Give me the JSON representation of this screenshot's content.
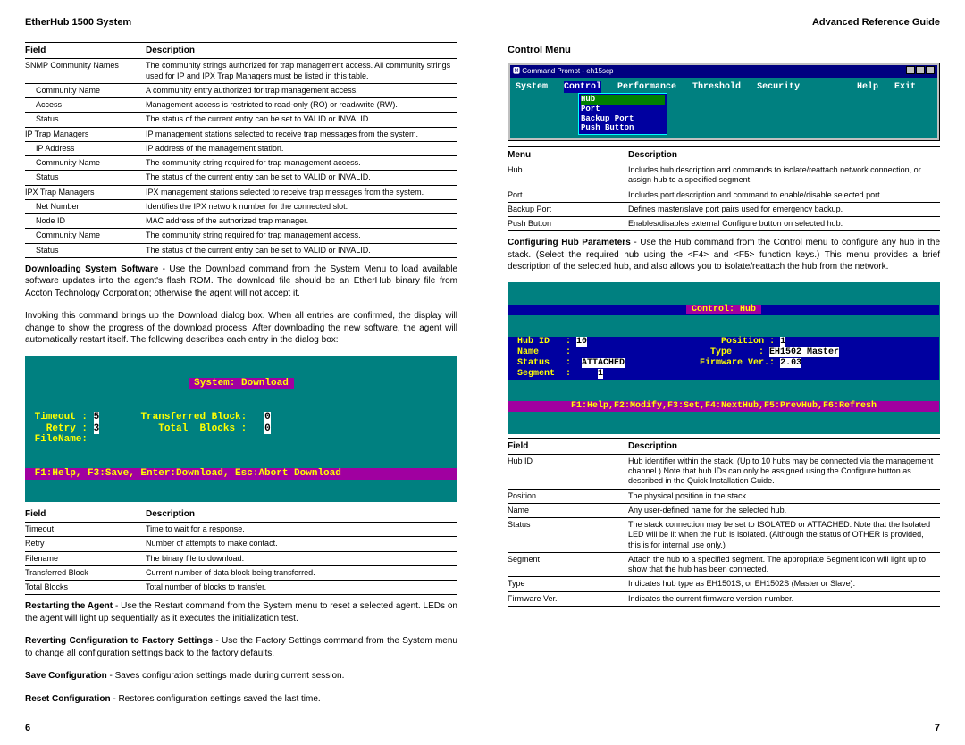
{
  "left": {
    "header": "EtherHub 1500 System",
    "table1": {
      "headers": [
        "Field",
        "Description"
      ],
      "rows": [
        {
          "f": "SNMP Community Names",
          "d": "The community strings authorized for trap management access.  All community strings used for IP and IPX Trap Managers must be listed in this table.",
          "i": false
        },
        {
          "f": "Community Name",
          "d": "A community entry authorized for trap management access.",
          "i": true
        },
        {
          "f": "Access",
          "d": "Management access is restricted to read-only (RO) or read/write (RW).",
          "i": true
        },
        {
          "f": "Status",
          "d": "The status of the current entry can be set to VALID or INVALID.",
          "i": true
        },
        {
          "f": "IP Trap Managers",
          "d": "IP management stations selected to receive trap messages from the system.",
          "i": false
        },
        {
          "f": "IP Address",
          "d": "IP address of the management station.",
          "i": true
        },
        {
          "f": "Community Name",
          "d": "The community string required for trap management access.",
          "i": true
        },
        {
          "f": "Status",
          "d": "The status of the current entry can be set to VALID or INVALID.",
          "i": true
        },
        {
          "f": "IPX Trap Managers",
          "d": "IPX management stations selected to receive trap messages from the system.",
          "i": false
        },
        {
          "f": "Net Number",
          "d": "Identifies the IPX network number for the connected slot.",
          "i": true
        },
        {
          "f": "Node ID",
          "d": "MAC address of the authorized trap manager.",
          "i": true
        },
        {
          "f": "Community Name",
          "d": "The community string required for trap management access.",
          "i": true
        },
        {
          "f": "Status",
          "d": "The status of the current entry can be set to VALID or INVALID.",
          "i": true
        }
      ]
    },
    "para1": "<b>Downloading System Software</b> - Use the Download command from the System Menu to load available software updates into the agent's flash ROM. The download file should be an EtherHub binary file from Accton Technology Corporation; otherwise the agent will not accept it.",
    "para2": "Invoking this command brings up the Download dialog box. When all entries are confirmed, the display will change to show the progress of the download process.  After downloading the new software, the agent will automatically restart itself.   The following describes each entry in the dialog box:",
    "terminal1": {
      "title": " System: Download ",
      "rows": [
        {
          "l": " Timeout : ",
          "v1": "5",
          "m": "       Transferred Block:   ",
          "v2": "0"
        },
        {
          "l": "   Retry : ",
          "v1": "3",
          "m": "          Total  Blocks :   ",
          "v2": "0"
        },
        {
          "l": " FileName:",
          "v1": "",
          "m": "",
          "v2": ""
        }
      ],
      "hotbar": " F1:Help, F3:Save, Enter:Download, Esc:Abort Download "
    },
    "table2": {
      "headers": [
        "Field",
        "Description"
      ],
      "rows": [
        {
          "f": "Timeout",
          "d": "Time to wait for a response."
        },
        {
          "f": "Retry",
          "d": "Number of attempts to make contact."
        },
        {
          "f": "Filename",
          "d": "The binary file to download."
        },
        {
          "f": "Transferred Block",
          "d": "Current number of data block being transferred."
        },
        {
          "f": "Total Blocks",
          "d": "Total number of blocks to transfer."
        }
      ]
    },
    "para3": "<b>Restarting the Agent</b> - Use the Restart command from the System menu to reset a selected agent. LEDs on the agent will light up sequentially as it executes the initialization test.",
    "para4": "<b>Reverting Configuration to Factory Settings</b> - Use the Factory Settings command from the System menu to change all configuration settings back to the factory defaults.",
    "para5": "<b>Save Configuration</b> - Saves configuration settings made during current session.",
    "para6": "<b>Reset Configuration</b> - Restores configuration settings saved the last time.",
    "pagenum": "6"
  },
  "right": {
    "header": "Advanced Reference Guide",
    "section": "Control Menu",
    "menubar": {
      "title": "Command Prompt - eh15scp",
      "items": [
        "System",
        "Control",
        "Performance",
        "Threshold",
        "Security",
        "Help",
        "Exit"
      ],
      "submenu": [
        "Hub",
        "Port",
        "Backup Port",
        "Push Button"
      ]
    },
    "table3": {
      "headers": [
        "Menu",
        "Description"
      ],
      "rows": [
        {
          "f": "Hub",
          "d": "Includes hub description and commands to isolate/reattach network connection, or assign hub to a specified segment."
        },
        {
          "f": "Port",
          "d": "Includes port description and command to enable/disable selected port."
        },
        {
          "f": "Backup Port",
          "d": "Defines master/slave port pairs used for emergency backup."
        },
        {
          "f": "Push Button",
          "d": "Enables/disables external Configure button on selected hub."
        }
      ]
    },
    "para7": "<b>Configuring Hub Parameters</b> - Use the Hub command from the Control menu to configure any hub in the stack.  (Select the required hub using the &lt;F4&gt; and &lt;F5&gt; function keys.)  This menu provides a brief description of the selected hub, and also allows you to isolate/reattach the hub from the network.",
    "hubterm": {
      "title": " Control: Hub ",
      "rows": [
        " Hub ID   : [10]                         Position : [1]",
        " Name     :                          Type     : [EH1502 Master]",
        " Status   :  [ATTACHED]              Firmware Ver.: [2.03]",
        " Segment  :     [1]"
      ],
      "hot": "F1:Help,F2:Modify,F3:Set,F4:NextHub,F5:PrevHub,F6:Refresh"
    },
    "table4": {
      "headers": [
        "Field",
        "Description"
      ],
      "rows": [
        {
          "f": "Hub ID",
          "d": "Hub identifier within the stack.  (Up to 10 hubs may be connected via the management channel.)  Note that hub IDs can only be assigned using the Configure button as described in the Quick Installation Guide."
        },
        {
          "f": "Position",
          "d": "The physical position in the stack."
        },
        {
          "f": "Name",
          "d": "Any user-defined name for the selected hub."
        },
        {
          "f": "Status",
          "d": "The stack connection may be set to ISOLATED or ATTACHED.  Note that the Isolated LED will be lit when the hub is isolated. (Although the status of OTHER is provided, this is for internal use only.)"
        },
        {
          "f": "Segment",
          "d": "Attach the hub to a specified segment.  The appropriate Segment icon will light up to show that the hub has been connected."
        },
        {
          "f": "Type",
          "d": "Indicates hub type as EH1501S, or EH1502S (Master or Slave)."
        },
        {
          "f": "Firmware Ver.",
          "d": "Indicates the current firmware version number."
        }
      ]
    },
    "pagenum": "7"
  }
}
